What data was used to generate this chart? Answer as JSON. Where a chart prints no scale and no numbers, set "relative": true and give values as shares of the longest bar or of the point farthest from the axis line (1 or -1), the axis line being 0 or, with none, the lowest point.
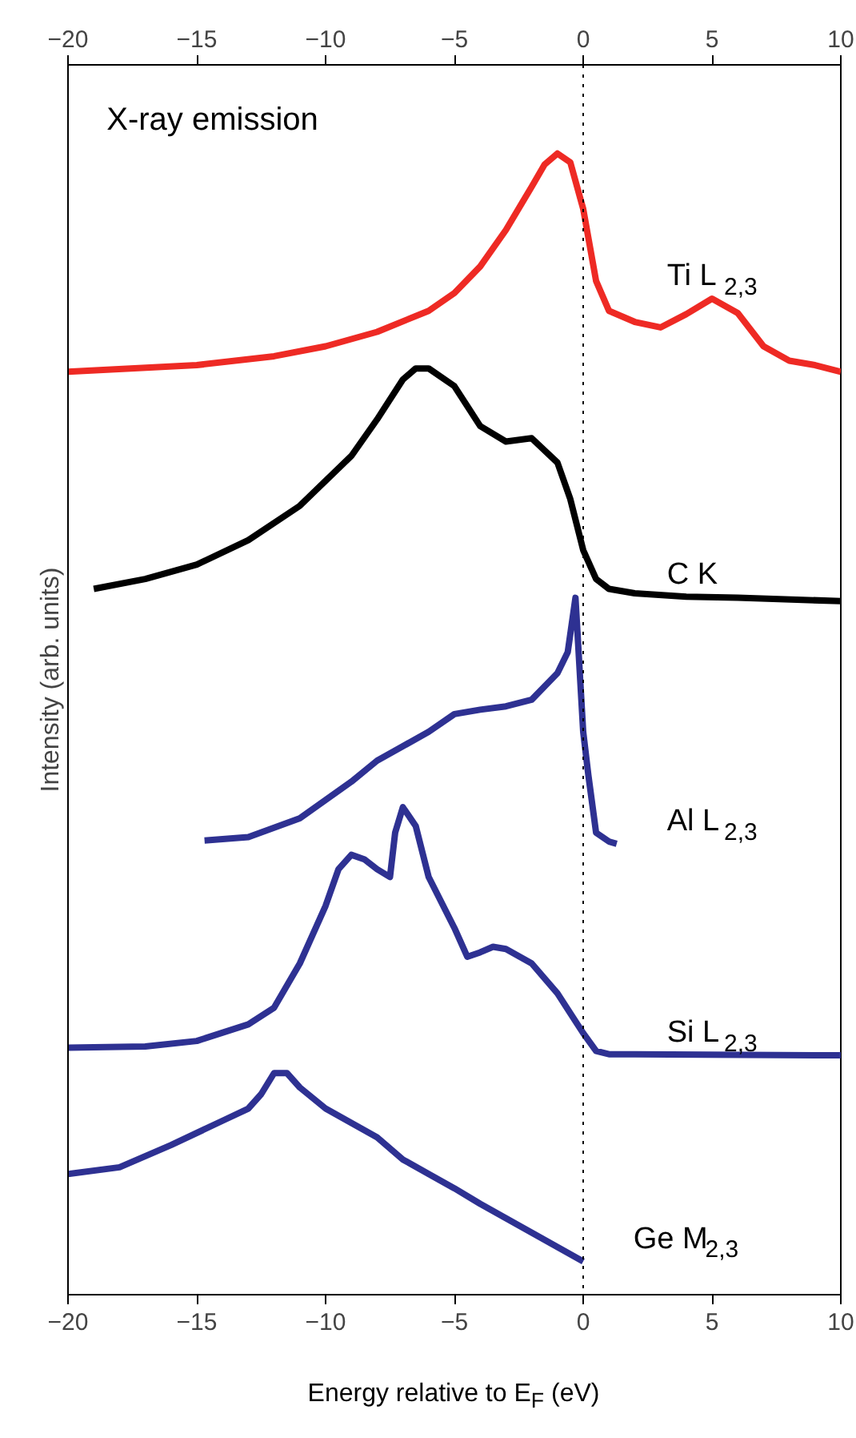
{
  "chart_data": {
    "type": "line",
    "relative": true,
    "xlabel": "Energy relative to E$_{F}$ (eV)",
    "ylabel": "Intensity (arb. units)",
    "annotations": [
      "X-ray emission"
    ],
    "xlim": [
      -20,
      10
    ],
    "xticks": [
      -20,
      -15,
      -10,
      -5,
      0,
      5,
      10
    ],
    "x2lim": [
      -20,
      10
    ],
    "x2ticks": [
      -20,
      -15,
      -10,
      -5,
      0,
      5,
      10
    ],
    "tick_labels": "x",
    "grid": false,
    "legend": false,
    "marker": "none",
    "line_style": "solid",
    "ref_lines": [
      {
        "axis": "x",
        "value": 0,
        "color": "#000000",
        "line_style": "dotted"
      }
    ],
    "series": [
      {
        "name": "Ti L$_{2,3}$",
        "color": "#ee2a24",
        "x": [
          -20,
          -15,
          -12,
          -10,
          -8,
          -6,
          -5,
          -4,
          -3,
          -2,
          -1.5,
          -1,
          -0.5,
          0,
          0.5,
          1,
          2,
          3,
          4,
          5,
          6,
          7,
          8,
          9,
          10
        ],
        "values": [
          0.803,
          0.809,
          0.817,
          0.826,
          0.839,
          0.858,
          0.874,
          0.898,
          0.931,
          0.97,
          0.99,
          1.0,
          0.992,
          0.95,
          0.885,
          0.858,
          0.848,
          0.843,
          0.855,
          0.869,
          0.856,
          0.826,
          0.813,
          0.809,
          0.803
        ]
      },
      {
        "name": "C K",
        "color": "#000000",
        "x": [
          -19,
          -17,
          -15,
          -13,
          -11,
          -9,
          -8,
          -7,
          -6.5,
          -6,
          -5,
          -4,
          -3,
          -2,
          -1,
          -0.5,
          0,
          0.5,
          1,
          2,
          4,
          6,
          10
        ],
        "values": [
          0.607,
          0.616,
          0.629,
          0.651,
          0.682,
          0.727,
          0.76,
          0.796,
          0.806,
          0.806,
          0.79,
          0.754,
          0.74,
          0.743,
          0.721,
          0.688,
          0.642,
          0.616,
          0.607,
          0.603,
          0.6,
          0.599,
          0.596
        ]
      },
      {
        "name": "Al L$_{2,3}$",
        "color": "#2e3192",
        "x": [
          -14.7,
          -13,
          -11,
          -9,
          -8,
          -7,
          -6,
          -5,
          -4,
          -3,
          -2,
          -1,
          -0.6,
          -0.3,
          0,
          0.2,
          0.5,
          1,
          1.3
        ],
        "values": [
          0.38,
          0.383,
          0.4,
          0.433,
          0.452,
          0.465,
          0.478,
          0.494,
          0.498,
          0.501,
          0.507,
          0.531,
          0.55,
          0.599,
          0.478,
          0.439,
          0.387,
          0.379,
          0.377
        ]
      },
      {
        "name": "Si L$_{2,3}$",
        "color": "#2e3192",
        "x": [
          -20,
          -17,
          -15,
          -13,
          -12,
          -11,
          -10,
          -9.5,
          -9,
          -8.5,
          -8,
          -7.5,
          -7.3,
          -7,
          -6.5,
          -6,
          -5,
          -4.5,
          -4,
          -3.5,
          -3,
          -2,
          -1,
          0,
          0.5,
          1,
          2,
          10
        ],
        "values": [
          0.193,
          0.194,
          0.199,
          0.214,
          0.229,
          0.269,
          0.321,
          0.354,
          0.367,
          0.363,
          0.354,
          0.347,
          0.387,
          0.41,
          0.393,
          0.347,
          0.301,
          0.275,
          0.279,
          0.284,
          0.282,
          0.269,
          0.242,
          0.206,
          0.19,
          0.187,
          0.187,
          0.186
        ]
      },
      {
        "name": "Ge M$_{2,3}$",
        "color": "#2e3192",
        "x": [
          -20,
          -18,
          -16,
          -14,
          -13,
          -12.5,
          -12,
          -11.5,
          -11,
          -10,
          -9,
          -8,
          -7,
          -6,
          -5,
          -4,
          -3,
          -2,
          -1,
          0
        ],
        "values": [
          0.079,
          0.085,
          0.105,
          0.127,
          0.138,
          0.151,
          0.17,
          0.17,
          0.157,
          0.138,
          0.125,
          0.112,
          0.092,
          0.079,
          0.066,
          0.052,
          0.039,
          0.026,
          0.013,
          0.0
        ]
      }
    ]
  }
}
